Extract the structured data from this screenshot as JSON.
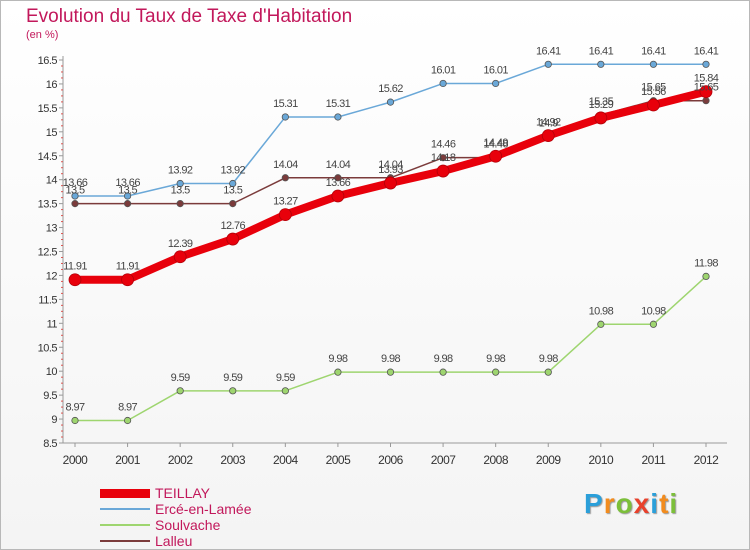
{
  "header": {
    "title": "Evolution du Taux de Taxe d'Habitation",
    "unit": "(en %)"
  },
  "brand": {
    "letters": [
      "P",
      "r",
      "o",
      "x",
      "i",
      "t",
      "i"
    ],
    "colors": [
      "#2b9fd9",
      "#f28c1e",
      "#7cbf3a",
      "#e8412c",
      "#2b9fd9",
      "#f28c1e",
      "#7cbf3a"
    ]
  },
  "chart_data": {
    "type": "line",
    "x": [
      "2000",
      "2001",
      "2002",
      "2003",
      "2004",
      "2005",
      "2006",
      "2007",
      "2008",
      "2009",
      "2010",
      "2011",
      "2012"
    ],
    "ylim": [
      8.5,
      16.5
    ],
    "yticks": [
      "8.5",
      "9",
      "9.5",
      "10",
      "10.5",
      "11",
      "11.5",
      "12",
      "12.5",
      "13",
      "13.5",
      "14",
      "14.5",
      "15",
      "15.5",
      "16",
      "16.5"
    ],
    "grid": false,
    "legend": "bottom-left",
    "series": [
      {
        "name": "TEILLAY",
        "color": "#e8000b",
        "values": [
          11.91,
          11.91,
          12.39,
          12.76,
          13.27,
          13.66,
          13.93,
          14.18,
          14.49,
          14.92,
          15.29,
          15.56,
          15.84
        ],
        "labels": [
          "11.91",
          "11.91",
          "12.39",
          "12.76",
          "13.27",
          "13.66",
          "13.93",
          "14.18",
          "14.49",
          "14.92",
          "15.29",
          "15.56",
          "15.84"
        ]
      },
      {
        "name": "Ercé-en-Lamée",
        "color": "#6aa8d8",
        "values": [
          13.66,
          13.66,
          13.92,
          13.92,
          15.31,
          15.31,
          15.62,
          16.01,
          16.01,
          16.41,
          16.41,
          16.41,
          16.41
        ],
        "labels": [
          "13.66",
          "13.66",
          "13.92",
          "13.92",
          "15.31",
          "15.31",
          "15.62",
          "16.01",
          "16.01",
          "16.41",
          "16.41",
          "16.41",
          "16.41"
        ]
      },
      {
        "name": "Soulvache",
        "color": "#9ed56f",
        "values": [
          8.97,
          8.97,
          9.59,
          9.59,
          9.59,
          9.98,
          9.98,
          9.98,
          9.98,
          9.98,
          10.98,
          10.98,
          11.98
        ],
        "labels": [
          "8.97",
          "8.97",
          "9.59",
          "9.59",
          "9.59",
          "9.98",
          "9.98",
          "9.98",
          "9.98",
          "9.98",
          "10.98",
          "10.98",
          "11.98"
        ]
      },
      {
        "name": "Lalleu",
        "color": "#7b3b3b",
        "values": [
          13.5,
          13.5,
          13.5,
          13.5,
          14.04,
          14.04,
          14.04,
          14.46,
          14.46,
          14.9,
          15.35,
          15.65,
          15.65
        ],
        "labels": [
          "13.5",
          "13.5",
          "13.5",
          "13.5",
          "14.04",
          "14.04",
          "14.04",
          "14.46",
          "14.46",
          "14.9",
          "15.35",
          "15.65",
          "15.65"
        ]
      }
    ]
  }
}
